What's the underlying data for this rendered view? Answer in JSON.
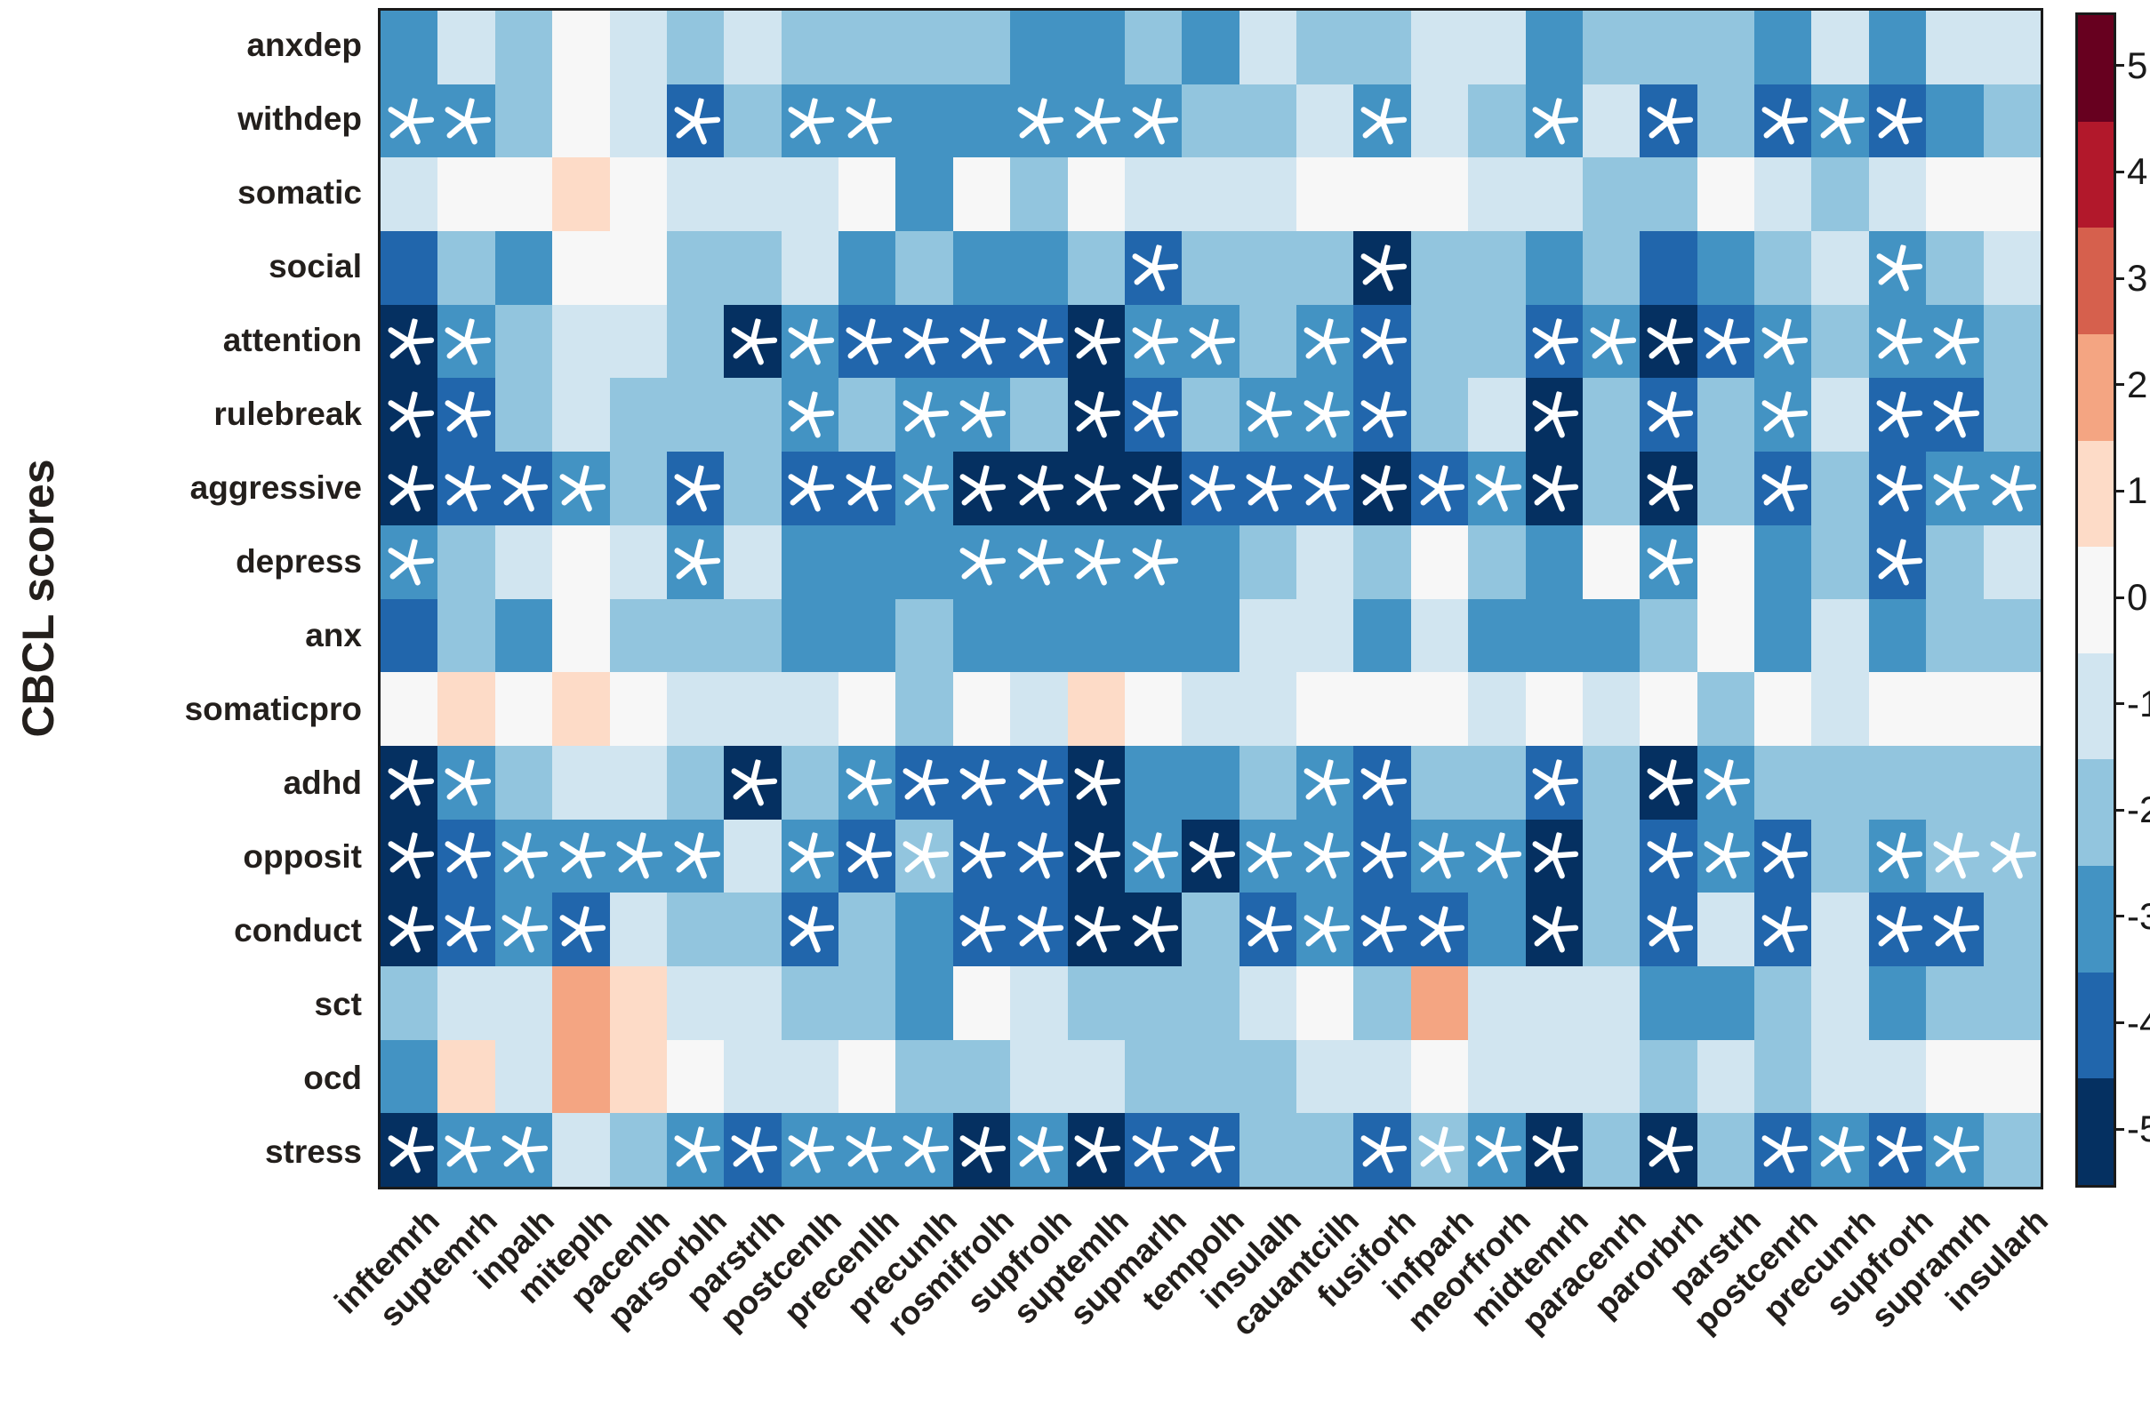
{
  "chart_data": {
    "type": "heatmap",
    "ylabel": "CBCL scores",
    "rows": [
      "anxdep",
      "withdep",
      "somatic",
      "social",
      "attention",
      "rulebreak",
      "aggressive",
      "depress",
      "anx",
      "somaticpro",
      "adhd",
      "opposit",
      "conduct",
      "sct",
      "ocd",
      "stress"
    ],
    "columns": [
      "inftemrh",
      "suptemrh",
      "inpalh",
      "miteplh",
      "pacenlh",
      "parsorblh",
      "parstrlh",
      "postcenlh",
      "precenllh",
      "precunlh",
      "rosmifrolh",
      "supfrolh",
      "suptemlh",
      "supmarlh",
      "tempolh",
      "insulalh",
      "cauantcilh",
      "fusiforh",
      "infparh",
      "meorfrorh",
      "midtemrh",
      "paracenrh",
      "parorbrh",
      "parstrh",
      "postcenrh",
      "precunrh",
      "supfrorh",
      "supramrh",
      "insularh"
    ],
    "values": [
      [
        -3,
        -1,
        -2,
        0,
        -1,
        -2,
        -1,
        -2,
        -2,
        -2,
        -2,
        -3,
        -3,
        -2,
        -3,
        -1,
        -2,
        -2,
        -1,
        -1,
        -3,
        -2,
        -2,
        -2,
        -3,
        -1,
        -3,
        -1,
        -1
      ],
      [
        -3,
        -3,
        -2,
        0,
        -1,
        -4,
        -2,
        -3,
        -3,
        -3,
        -3,
        -3,
        -3,
        -3,
        -2,
        -2,
        -1,
        -3,
        -1,
        -2,
        -3,
        -1,
        -4,
        -2,
        -4,
        -3,
        -4,
        -3,
        -2
      ],
      [
        -1,
        0,
        0,
        1,
        0,
        -1,
        -1,
        -1,
        0,
        -3,
        0,
        -2,
        0,
        -1,
        -1,
        -1,
        0,
        0,
        0,
        -1,
        -1,
        -2,
        -2,
        0,
        -1,
        -2,
        -1,
        0,
        0
      ],
      [
        -4,
        -2,
        -3,
        0,
        0,
        -2,
        -2,
        -1,
        -3,
        -2,
        -3,
        -3,
        -2,
        -4,
        -2,
        -2,
        -2,
        -5,
        -2,
        -2,
        -3,
        -2,
        -4,
        -3,
        -2,
        -1,
        -3,
        -2,
        -1
      ],
      [
        -5,
        -3,
        -2,
        -1,
        -1,
        -2,
        -5,
        -3,
        -4,
        -4,
        -4,
        -4,
        -5,
        -3,
        -3,
        -2,
        -3,
        -4,
        -2,
        -2,
        -4,
        -3,
        -5,
        -4,
        -3,
        -2,
        -3,
        -3,
        -2
      ],
      [
        -5,
        -4,
        -2,
        -1,
        -2,
        -2,
        -2,
        -3,
        -2,
        -3,
        -3,
        -2,
        -5,
        -4,
        -2,
        -3,
        -3,
        -4,
        -2,
        -1,
        -5,
        -2,
        -4,
        -2,
        -3,
        -1,
        -4,
        -4,
        -2
      ],
      [
        -5,
        -4,
        -4,
        -3,
        -2,
        -4,
        -2,
        -4,
        -4,
        -3,
        -5,
        -5,
        -5,
        -5,
        -4,
        -4,
        -4,
        -5,
        -4,
        -3,
        -5,
        -2,
        -5,
        -2,
        -4,
        -2,
        -4,
        -3,
        -3
      ],
      [
        -3,
        -2,
        -1,
        0,
        -1,
        -3,
        -1,
        -3,
        -3,
        -3,
        -3,
        -3,
        -3,
        -3,
        -3,
        -2,
        -1,
        -2,
        0,
        -2,
        -3,
        0,
        -3,
        0,
        -3,
        -2,
        -4,
        -2,
        -1
      ],
      [
        -4,
        -2,
        -3,
        0,
        -2,
        -2,
        -2,
        -3,
        -3,
        -2,
        -3,
        -3,
        -3,
        -3,
        -3,
        -1,
        -1,
        -3,
        -1,
        -3,
        -3,
        -3,
        -2,
        0,
        -3,
        -1,
        -3,
        -2,
        -2
      ],
      [
        0,
        1,
        0,
        1,
        0,
        -1,
        -1,
        -1,
        0,
        -2,
        0,
        -1,
        1,
        0,
        -1,
        -1,
        0,
        0,
        0,
        -1,
        0,
        -1,
        0,
        -2,
        0,
        -1,
        0,
        0,
        0
      ],
      [
        -5,
        -3,
        -2,
        -1,
        -1,
        -2,
        -5,
        -2,
        -3,
        -4,
        -4,
        -4,
        -5,
        -3,
        -3,
        -2,
        -3,
        -4,
        -2,
        -2,
        -4,
        -2,
        -5,
        -3,
        -2,
        -2,
        -2,
        -2,
        -2
      ],
      [
        -5,
        -4,
        -3,
        -3,
        -3,
        -3,
        -1,
        -3,
        -4,
        -2,
        -4,
        -4,
        -5,
        -3,
        -5,
        -3,
        -3,
        -4,
        -3,
        -3,
        -5,
        -2,
        -4,
        -3,
        -4,
        -2,
        -3,
        -2,
        -2
      ],
      [
        -5,
        -4,
        -3,
        -4,
        -1,
        -2,
        -2,
        -4,
        -2,
        -3,
        -4,
        -4,
        -5,
        -5,
        -2,
        -4,
        -3,
        -4,
        -4,
        -3,
        -5,
        -2,
        -4,
        -1,
        -4,
        -1,
        -4,
        -4,
        -2
      ],
      [
        -2,
        -1,
        -1,
        2,
        1,
        -1,
        -1,
        -2,
        -2,
        -3,
        0,
        -1,
        -2,
        -2,
        -2,
        -1,
        0,
        -2,
        2,
        -1,
        -1,
        -1,
        -3,
        -3,
        -2,
        -1,
        -3,
        -2,
        -2
      ],
      [
        -3,
        1,
        -1,
        2,
        1,
        0,
        -1,
        -1,
        0,
        -2,
        -2,
        -1,
        -1,
        -2,
        -2,
        -2,
        -1,
        -1,
        0,
        -1,
        -1,
        -1,
        -2,
        -1,
        -2,
        -1,
        -1,
        0,
        0
      ],
      [
        -5,
        -3,
        -3,
        -1,
        -2,
        -3,
        -4,
        -3,
        -3,
        -3,
        -5,
        -3,
        -5,
        -4,
        -4,
        -2,
        -2,
        -4,
        -2,
        -3,
        -5,
        -2,
        -5,
        -2,
        -4,
        -3,
        -4,
        -3,
        -2
      ]
    ],
    "significant": [
      [
        0,
        0,
        0,
        0,
        0,
        0,
        0,
        0,
        0,
        0,
        0,
        0,
        0,
        0,
        0,
        0,
        0,
        0,
        0,
        0,
        0,
        0,
        0,
        0,
        0,
        0,
        0,
        0,
        0
      ],
      [
        1,
        1,
        0,
        0,
        0,
        1,
        0,
        1,
        1,
        0,
        0,
        1,
        1,
        1,
        0,
        0,
        0,
        1,
        0,
        0,
        1,
        0,
        1,
        0,
        1,
        1,
        1,
        0,
        0
      ],
      [
        0,
        0,
        0,
        0,
        0,
        0,
        0,
        0,
        0,
        0,
        0,
        0,
        0,
        0,
        0,
        0,
        0,
        0,
        0,
        0,
        0,
        0,
        0,
        0,
        0,
        0,
        0,
        0,
        0
      ],
      [
        0,
        0,
        0,
        0,
        0,
        0,
        0,
        0,
        0,
        0,
        0,
        0,
        0,
        1,
        0,
        0,
        0,
        1,
        0,
        0,
        0,
        0,
        0,
        0,
        0,
        0,
        1,
        0,
        0
      ],
      [
        1,
        1,
        0,
        0,
        0,
        0,
        1,
        1,
        1,
        1,
        1,
        1,
        1,
        1,
        1,
        0,
        1,
        1,
        0,
        0,
        1,
        1,
        1,
        1,
        1,
        0,
        1,
        1,
        0
      ],
      [
        1,
        1,
        0,
        0,
        0,
        0,
        0,
        1,
        0,
        1,
        1,
        0,
        1,
        1,
        0,
        1,
        1,
        1,
        0,
        0,
        1,
        0,
        1,
        0,
        1,
        0,
        1,
        1,
        0
      ],
      [
        1,
        1,
        1,
        1,
        0,
        1,
        0,
        1,
        1,
        1,
        1,
        1,
        1,
        1,
        1,
        1,
        1,
        1,
        1,
        1,
        1,
        0,
        1,
        0,
        1,
        0,
        1,
        1,
        1
      ],
      [
        1,
        0,
        0,
        0,
        0,
        1,
        0,
        0,
        0,
        0,
        1,
        1,
        1,
        1,
        0,
        0,
        0,
        0,
        0,
        0,
        0,
        0,
        1,
        0,
        0,
        0,
        1,
        0,
        0
      ],
      [
        0,
        0,
        0,
        0,
        0,
        0,
        0,
        0,
        0,
        0,
        0,
        0,
        0,
        0,
        0,
        0,
        0,
        0,
        0,
        0,
        0,
        0,
        0,
        0,
        0,
        0,
        0,
        0,
        0
      ],
      [
        0,
        0,
        0,
        0,
        0,
        0,
        0,
        0,
        0,
        0,
        0,
        0,
        0,
        0,
        0,
        0,
        0,
        0,
        0,
        0,
        0,
        0,
        0,
        0,
        0,
        0,
        0,
        0,
        0
      ],
      [
        1,
        1,
        0,
        0,
        0,
        0,
        1,
        0,
        1,
        1,
        1,
        1,
        1,
        0,
        0,
        0,
        1,
        1,
        0,
        0,
        1,
        0,
        1,
        1,
        0,
        0,
        0,
        0,
        0
      ],
      [
        1,
        1,
        1,
        1,
        1,
        1,
        0,
        1,
        1,
        1,
        1,
        1,
        1,
        1,
        1,
        1,
        1,
        1,
        1,
        1,
        1,
        0,
        1,
        1,
        1,
        0,
        1,
        1,
        1
      ],
      [
        1,
        1,
        1,
        1,
        0,
        0,
        0,
        1,
        0,
        0,
        1,
        1,
        1,
        1,
        0,
        1,
        1,
        1,
        1,
        0,
        1,
        0,
        1,
        0,
        1,
        0,
        1,
        1,
        0
      ],
      [
        0,
        0,
        0,
        0,
        0,
        0,
        0,
        0,
        0,
        0,
        0,
        0,
        0,
        0,
        0,
        0,
        0,
        0,
        0,
        0,
        0,
        0,
        0,
        0,
        0,
        0,
        0,
        0,
        0
      ],
      [
        0,
        0,
        0,
        0,
        0,
        0,
        0,
        0,
        0,
        0,
        0,
        0,
        0,
        0,
        0,
        0,
        0,
        0,
        0,
        0,
        0,
        0,
        0,
        0,
        0,
        0,
        0,
        0,
        0
      ],
      [
        1,
        1,
        1,
        0,
        0,
        1,
        1,
        1,
        1,
        1,
        1,
        1,
        1,
        1,
        1,
        0,
        0,
        1,
        1,
        1,
        1,
        0,
        1,
        0,
        1,
        1,
        1,
        1,
        0
      ]
    ],
    "value_range": [
      -5,
      5
    ],
    "palette": {
      "-5": "#053061",
      "-4": "#2166ac",
      "-3": "#4393c3",
      "-2": "#92c5de",
      "-1": "#d1e5f0",
      "0": "#f7f7f7",
      "1": "#fddbc7",
      "2": "#f4a582",
      "3": "#d6604d",
      "4": "#b2182b",
      "5": "#67001f"
    },
    "colorbar_ticks": [
      "5",
      "4",
      "3",
      "2",
      "1",
      "0",
      "-1",
      "-2",
      "-3",
      "-4",
      "-5"
    ],
    "significance_marker": "white-star-asterisk",
    "legend_position": "right",
    "grid": "off"
  }
}
